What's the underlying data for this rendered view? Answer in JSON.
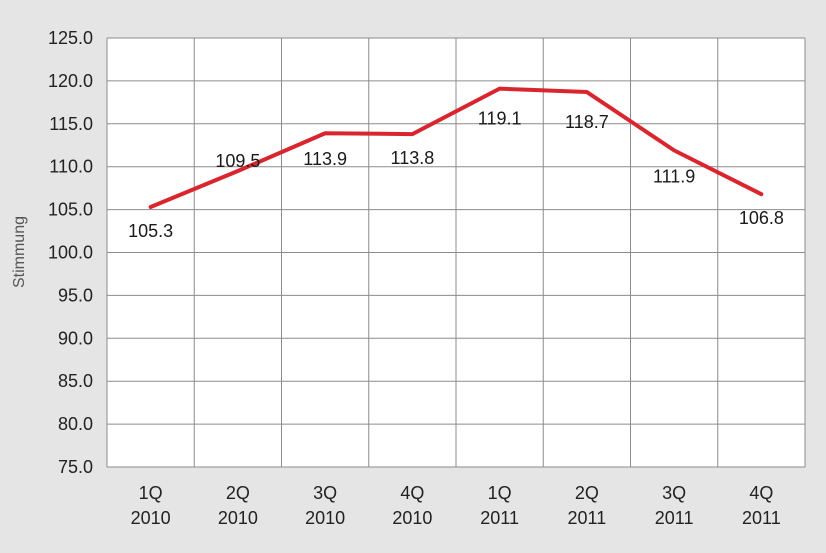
{
  "chart_data": {
    "type": "line",
    "title": "",
    "xlabel": "",
    "ylabel": "Stimmung",
    "categories": [
      [
        "1Q",
        "2010"
      ],
      [
        "2Q",
        "2010"
      ],
      [
        "3Q",
        "2010"
      ],
      [
        "4Q",
        "2010"
      ],
      [
        "1Q",
        "2011"
      ],
      [
        "2Q",
        "2011"
      ],
      [
        "3Q",
        "2011"
      ],
      [
        "4Q",
        "2011"
      ]
    ],
    "series": [
      {
        "values": [
          105.3,
          109.5,
          113.9,
          113.8,
          119.1,
          118.7,
          111.9,
          106.8
        ],
        "data_labels": [
          "105.3",
          "109.5",
          "113.9",
          "113.8",
          "119.1",
          "118.7",
          "111.9",
          "106.8"
        ],
        "color": "#d9262e"
      }
    ],
    "ylim": [
      75,
      125
    ],
    "yticks": [
      "75.0",
      "80.0",
      "85.0",
      "90.0",
      "95.0",
      "100.0",
      "105.0",
      "110.0",
      "115.0",
      "120.0",
      "125.0"
    ],
    "grid": true,
    "legend": "none",
    "colors": {
      "background": "#e5e5e5",
      "plot_background": "#ffffff",
      "grid": "#8c8c8c"
    }
  }
}
